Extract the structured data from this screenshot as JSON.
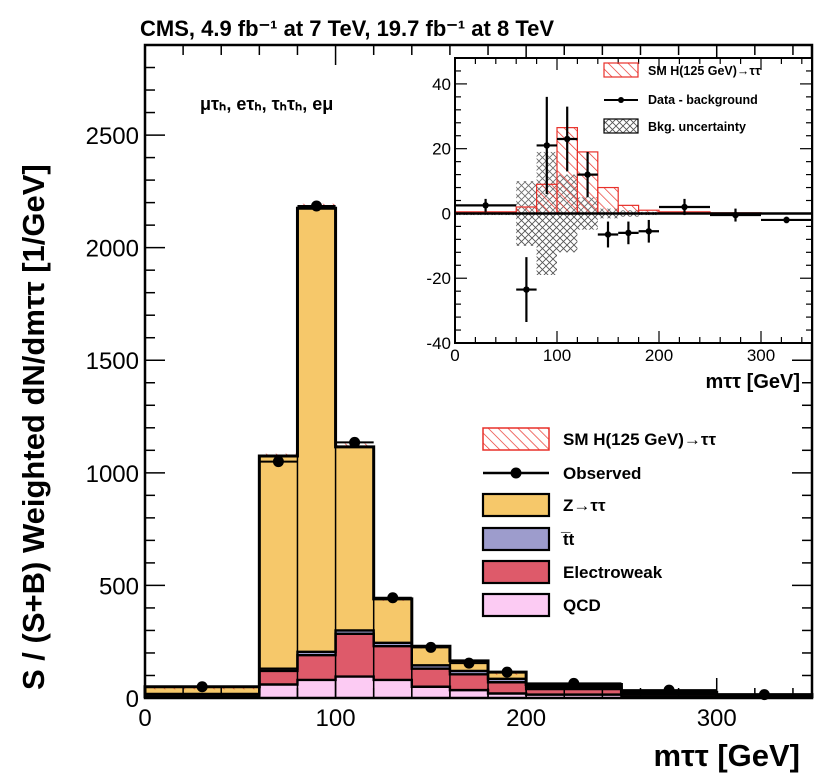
{
  "header": {
    "title": "CMS, 4.9 fb⁻¹ at 7 TeV, 19.7 fb⁻¹ at 8 TeV",
    "channels": "μτₕ, eτₕ, τₕτₕ, eμ"
  },
  "colors": {
    "ztt": "#f6c86a",
    "ttbar": "#9d9ccc",
    "ewk": "#de5a6a",
    "qcd": "#fccbf3",
    "signal_hatch": "#e8302a",
    "bkg_hatch": "#555555",
    "axis": "#000000"
  },
  "chart_data": [
    {
      "type": "bar",
      "stacked": true,
      "ylabel": "S / (S+B) Weighted dN/dmττ [1/GeV]",
      "xlabel": "mττ [GeV]",
      "xlim": [
        0,
        350
      ],
      "ylim": [
        0,
        2900
      ],
      "xticks": [
        "0",
        "100",
        "200",
        "300"
      ],
      "yticks": [
        "0",
        "500",
        "1000",
        "1500",
        "2000",
        "2500"
      ],
      "bin_edges": [
        0,
        60,
        80,
        100,
        120,
        140,
        160,
        180,
        200,
        250,
        300,
        350
      ],
      "series": [
        {
          "name": "QCD",
          "values": [
            5,
            60,
            80,
            95,
            80,
            50,
            35,
            20,
            15,
            5,
            3
          ]
        },
        {
          "name": "Electroweak",
          "values": [
            10,
            60,
            110,
            190,
            150,
            80,
            70,
            50,
            25,
            10,
            5
          ]
        },
        {
          "name": "t̅t",
          "values": [
            3,
            10,
            15,
            15,
            15,
            15,
            15,
            15,
            10,
            5,
            2
          ]
        },
        {
          "name": "Z→ττ",
          "values": [
            32,
            945,
            1970,
            815,
            195,
            85,
            45,
            30,
            10,
            5,
            5
          ]
        },
        {
          "name": "SM H(125 GeV)→ττ",
          "values": [
            2,
            10,
            20,
            15,
            5,
            3,
            2,
            2,
            1,
            1,
            1
          ]
        }
      ],
      "observed": {
        "name": "Observed",
        "x": [
          30,
          70,
          90,
          110,
          130,
          150,
          170,
          190,
          225,
          275,
          325
        ],
        "y": [
          50,
          1050,
          2185,
          1135,
          445,
          225,
          155,
          115,
          65,
          35,
          15
        ]
      },
      "legend_placement": "right",
      "legend": [
        "SM H(125 GeV)→ττ",
        "Observed",
        "Z→ττ",
        "t̅t",
        "Electroweak",
        "QCD"
      ]
    },
    {
      "type": "bar",
      "inset": true,
      "xlabel": "mττ [GeV]",
      "xlim": [
        0,
        350
      ],
      "ylim": [
        -40,
        48
      ],
      "xticks": [
        "0",
        "100",
        "200",
        "300"
      ],
      "yticks": [
        "-40",
        "-20",
        "0",
        "20",
        "40"
      ],
      "bin_edges": [
        0,
        60,
        80,
        100,
        120,
        140,
        160,
        180,
        200,
        250,
        300,
        350
      ],
      "signal": {
        "name": "SM H(125 GeV)→ττ",
        "values": [
          0.5,
          2,
          9,
          26.5,
          19,
          8,
          2.5,
          1,
          0.5,
          0.2,
          0.1
        ]
      },
      "bkg_uncertainty": {
        "name": "Bkg. uncertainty",
        "values": [
          0.5,
          10,
          19,
          12,
          5,
          1.5,
          1,
          0.5,
          0.3,
          0.2,
          0.1
        ]
      },
      "data_minus_bkg": {
        "name": "Data - background",
        "x": [
          30,
          70,
          90,
          110,
          130,
          150,
          170,
          190,
          225,
          275,
          325
        ],
        "y": [
          2.5,
          -23.5,
          21,
          23,
          12,
          -6.5,
          -6,
          -5.5,
          2,
          -0.5,
          -2
        ],
        "yerr": [
          2,
          10,
          15,
          10,
          7,
          4,
          3.5,
          3.5,
          2.5,
          2,
          1
        ]
      },
      "legend": [
        "SM H(125 GeV)→ττ",
        "Data - background",
        "Bkg. uncertainty"
      ]
    }
  ]
}
